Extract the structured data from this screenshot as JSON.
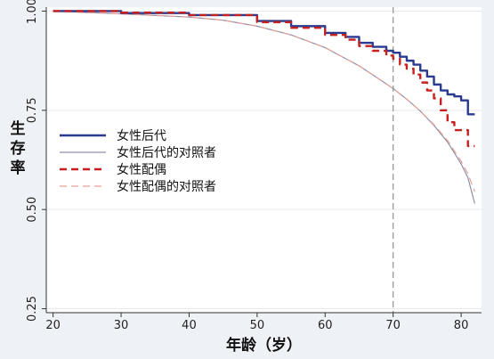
{
  "chart_data": {
    "type": "line",
    "xlabel": "年龄（岁）",
    "ylabel": "生存率",
    "xlim": [
      19,
      83
    ],
    "ylim": [
      0.24,
      1.01
    ],
    "x_ticks": [
      20,
      30,
      40,
      50,
      60,
      70,
      80
    ],
    "x_tick_labels": [
      "20",
      "30",
      "40",
      "50",
      "60",
      "70",
      "80"
    ],
    "y_ticks": [
      0.25,
      0.5,
      0.75,
      1.0
    ],
    "y_tick_labels": [
      "0.25",
      "0.50",
      "0.75",
      "1.00"
    ],
    "grid": "horizontal",
    "legend_position": "left-middle",
    "reference_line": {
      "x": 70,
      "style": "dashed"
    },
    "series": [
      {
        "name": "女性后代",
        "color": "#2a3b8f",
        "style": "solid-thick",
        "step": true,
        "x": [
          20,
          30,
          40,
          50,
          55,
          60,
          63,
          65,
          67,
          69,
          70,
          71,
          72,
          73,
          74,
          75,
          76,
          77,
          78,
          79,
          80,
          81,
          82
        ],
        "y": [
          1.0,
          0.995,
          0.99,
          0.975,
          0.962,
          0.945,
          0.935,
          0.92,
          0.91,
          0.9,
          0.895,
          0.885,
          0.875,
          0.865,
          0.85,
          0.835,
          0.815,
          0.8,
          0.79,
          0.785,
          0.775,
          0.74,
          0.74
        ]
      },
      {
        "name": "女性后代的对照者",
        "color": "#8f8fa8",
        "style": "solid-thin",
        "step": false,
        "x": [
          20,
          30,
          40,
          45,
          50,
          55,
          60,
          65,
          68,
          70,
          72,
          74,
          76,
          78,
          80,
          81,
          82
        ],
        "y": [
          1.0,
          0.993,
          0.985,
          0.977,
          0.962,
          0.94,
          0.908,
          0.862,
          0.828,
          0.805,
          0.778,
          0.748,
          0.712,
          0.67,
          0.615,
          0.58,
          0.515
        ]
      },
      {
        "name": "女性配偶",
        "color": "#c8201e",
        "style": "dashed-thick",
        "step": true,
        "x": [
          20,
          30,
          40,
          50,
          55,
          60,
          63,
          65,
          67,
          69,
          70,
          71,
          72,
          73,
          74,
          75,
          76,
          77,
          78,
          79,
          80,
          81,
          82
        ],
        "y": [
          1.0,
          0.996,
          0.99,
          0.972,
          0.958,
          0.94,
          0.928,
          0.912,
          0.9,
          0.888,
          0.88,
          0.865,
          0.855,
          0.84,
          0.82,
          0.8,
          0.78,
          0.75,
          0.72,
          0.7,
          0.7,
          0.66,
          0.66
        ]
      },
      {
        "name": "女性配偶的对照者",
        "color": "#e8a098",
        "style": "dashed-thin",
        "step": false,
        "x": [
          20,
          30,
          40,
          45,
          50,
          55,
          60,
          65,
          68,
          70,
          72,
          74,
          76,
          78,
          80,
          81,
          82
        ],
        "y": [
          1.0,
          0.993,
          0.985,
          0.977,
          0.962,
          0.94,
          0.908,
          0.862,
          0.828,
          0.805,
          0.778,
          0.748,
          0.714,
          0.674,
          0.622,
          0.59,
          0.545
        ]
      }
    ]
  }
}
